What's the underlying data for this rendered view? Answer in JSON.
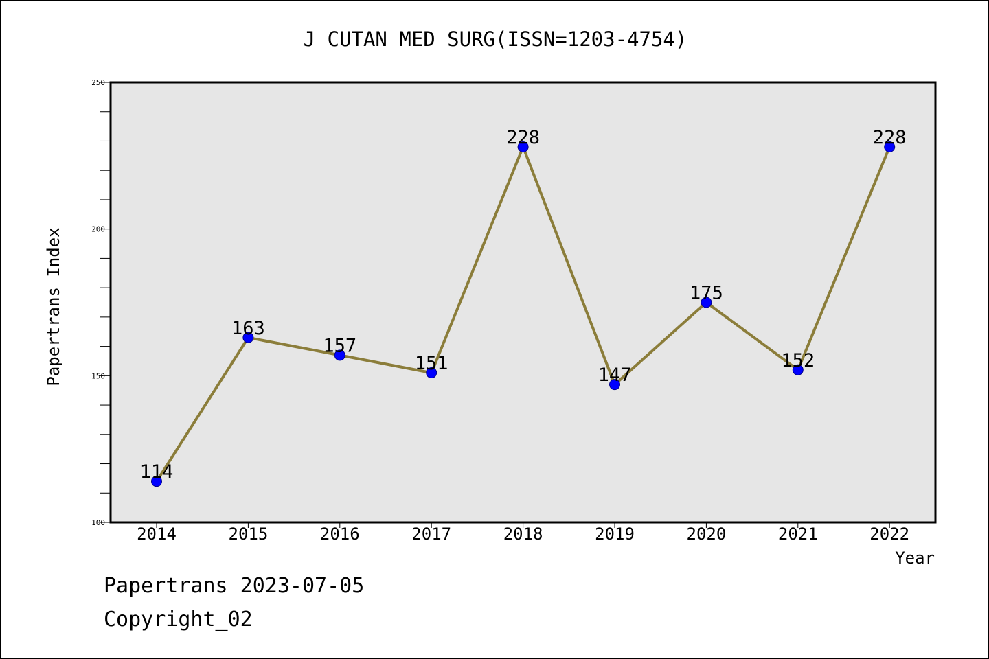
{
  "chart_data": {
    "type": "line",
    "title": "J CUTAN MED SURG(ISSN=1203-4754)",
    "xlabel": "Year",
    "ylabel": "Papertrans Index",
    "categories": [
      "2014",
      "2015",
      "2016",
      "2017",
      "2018",
      "2019",
      "2020",
      "2021",
      "2022"
    ],
    "values": [
      114,
      163,
      157,
      151,
      228,
      147,
      175,
      152,
      228
    ],
    "ylim": [
      100,
      250
    ],
    "yticks": [
      100,
      150,
      200,
      250
    ],
    "grid": false,
    "data_labels": true
  },
  "colors": {
    "plot_background": "#e6e6e6",
    "line": "#8b7d3a",
    "marker_fill": "#0000ff",
    "marker_edge": "#00008b",
    "axis": "#000000"
  },
  "footer": {
    "line1": "Papertrans 2023-07-05",
    "line2": "Copyright_02"
  }
}
